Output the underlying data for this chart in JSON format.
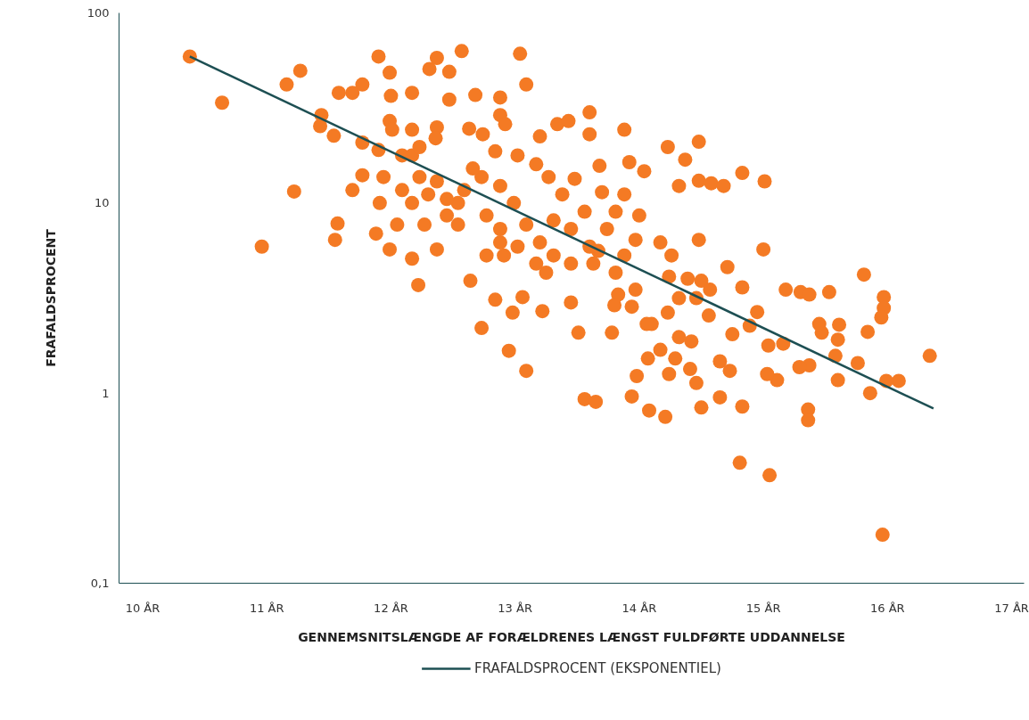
{
  "chart_data": {
    "type": "scatter",
    "xlabel": "GENNEMSNITSLÆNGDE AF FORÆLDRENES LÆNGST FULDFØRTE UDDANNELSE",
    "ylabel": "FRAFALDSPROCENT",
    "log": "y",
    "grid": false,
    "legend": "bottom",
    "line_style": "solid",
    "xlim": [
      9.81,
      17.1
    ],
    "xticks": [
      {
        "value": 10,
        "label": "10 ÅR"
      },
      {
        "value": 11,
        "label": "11 ÅR"
      },
      {
        "value": 12,
        "label": "12 ÅR"
      },
      {
        "value": 13,
        "label": "13 ÅR"
      },
      {
        "value": 14,
        "label": "14 ÅR"
      },
      {
        "value": 15,
        "label": "15 ÅR"
      },
      {
        "value": 16,
        "label": "16 ÅR"
      },
      {
        "value": 17,
        "label": "17 ÅR"
      }
    ],
    "ylim": [
      0.1,
      100
    ],
    "yticks": [
      {
        "value": 0.1,
        "label": "0,1"
      },
      1,
      10,
      100
    ],
    "series": [
      {
        "color": "#f47a24",
        "marker": "circle",
        "x": [
          10.38,
          10.64,
          10.96,
          11.16,
          11.27,
          11.22,
          11.44,
          11.43,
          11.54,
          11.58,
          11.57,
          11.55,
          11.69,
          11.69,
          11.77,
          11.77,
          11.77,
          11.9,
          11.9,
          11.88,
          11.99,
          11.99,
          11.99,
          12.0,
          12.17,
          12.17,
          12.22,
          12.17,
          12.17,
          12.17,
          12.31,
          12.37,
          12.37,
          12.47,
          12.47,
          12.57,
          12.37,
          12.37,
          12.54,
          12.54,
          12.68,
          12.63,
          12.64,
          12.73,
          12.74,
          12.77,
          12.84,
          12.88,
          12.88,
          12.92,
          13.04,
          13.09,
          12.95,
          12.98,
          13.09,
          13.06,
          13.22,
          13.25,
          13.2,
          13.34,
          13.43,
          13.6,
          13.6,
          13.56,
          13.65,
          13.51,
          13.78,
          13.68,
          13.88,
          13.92,
          14.04,
          14.0,
          13.94,
          14.08,
          13.97,
          13.98,
          14.21,
          14.23,
          14.37,
          14.32,
          14.48,
          14.48,
          14.58,
          14.68,
          14.83,
          15.01,
          15.0,
          14.48,
          14.5,
          14.83,
          14.81,
          15.05,
          14.71,
          14.83,
          15.18,
          15.3,
          15.37,
          15.53,
          15.36,
          15.36,
          15.81,
          15.97,
          15.97,
          15.95,
          15.84,
          16.34,
          16.09,
          15.99,
          15.86,
          15.96,
          15.76,
          15.6,
          15.6,
          15.61,
          15.47,
          15.45,
          15.58,
          15.37,
          15.29,
          15.11,
          15.03,
          15.16,
          15.04,
          14.95,
          14.89,
          14.75,
          14.65,
          14.73,
          14.65,
          14.46,
          14.41,
          14.29,
          14.24,
          14.17,
          14.07,
          14.1,
          14.23,
          14.32,
          14.46,
          14.56,
          14.39,
          14.24,
          14.17,
          14.26,
          14.5,
          14.57,
          13.83,
          13.8,
          13.97,
          13.94,
          12.73,
          12.88,
          12.99,
          13.09,
          13.2,
          13.31,
          13.45,
          13.56,
          13.74,
          13.67,
          13.38,
          13.27,
          13.17,
          13.02,
          12.84,
          12.66,
          12.59,
          12.45,
          12.3,
          12.23,
          12.09,
          11.94,
          11.91,
          12.05,
          12.27,
          12.45,
          12.88,
          13.02,
          13.17,
          13.45,
          13.63,
          13.81,
          13.88,
          13.81,
          13.88,
          13.7,
          13.48,
          12.91,
          12.77,
          12.09,
          12.01,
          12.23,
          12.36,
          12.88,
          13.31,
          13.6,
          14.06,
          14.42,
          14.32,
          13.45
        ],
        "values": [
          59,
          33.7,
          5.9,
          42,
          49.6,
          11.5,
          29,
          25.4,
          22.6,
          38,
          7.8,
          6.4,
          11.7,
          38,
          20.8,
          14,
          42,
          59,
          19,
          6.9,
          48.5,
          5.7,
          27,
          36.6,
          38,
          5.1,
          3.7,
          24.3,
          17.8,
          10,
          50.7,
          58,
          5.7,
          49,
          35,
          63,
          25,
          13,
          10,
          7.7,
          37,
          24.6,
          3.9,
          2.2,
          23,
          5.3,
          3.1,
          35.9,
          29,
          26,
          61,
          42,
          1.67,
          2.65,
          1.31,
          3.2,
          2.7,
          4.3,
          22.4,
          26,
          27,
          30,
          23,
          0.93,
          0.9,
          2.08,
          2.08,
          15.7,
          24.3,
          16.4,
          14.7,
          8.6,
          0.96,
          0.81,
          6.4,
          1.23,
          0.75,
          19.7,
          16.9,
          12.3,
          21,
          13.1,
          12.7,
          12.3,
          14.4,
          13,
          5.7,
          6.4,
          0.84,
          0.85,
          0.43,
          0.37,
          4.6,
          3.6,
          3.5,
          3.4,
          3.3,
          3.4,
          0.82,
          0.72,
          4.2,
          3.2,
          2.8,
          2.5,
          2.1,
          1.57,
          1.16,
          1.16,
          1.0,
          0.18,
          1.44,
          1.17,
          1.91,
          2.29,
          2.08,
          2.31,
          1.57,
          1.4,
          1.37,
          1.17,
          1.26,
          1.82,
          1.78,
          2.67,
          2.26,
          2.04,
          1.47,
          1.31,
          0.95,
          1.13,
          1.34,
          1.52,
          1.26,
          1.69,
          1.52,
          2.31,
          2.65,
          3.16,
          3.16,
          2.56,
          4.0,
          4.1,
          6.2,
          5.3,
          3.9,
          3.5,
          3.3,
          2.9,
          3.5,
          2.85,
          13.7,
          12.3,
          10,
          7.7,
          6.2,
          5.3,
          7.3,
          9.0,
          7.3,
          5.6,
          11.1,
          13.7,
          16,
          17.8,
          18.7,
          15.2,
          11.7,
          10.5,
          11.1,
          13.7,
          11.7,
          13.7,
          10,
          7.7,
          7.7,
          8.6,
          7.3,
          5.9,
          4.8,
          4.8,
          4.8,
          4.3,
          5.3,
          9.0,
          11.1,
          11.4,
          13.4,
          5.3,
          8.6,
          17.8,
          24.3,
          19.7,
          21.9,
          6.2,
          8.1,
          5.9,
          2.31,
          1.87,
          1.97,
          3.0
        ]
      },
      {
        "type": "line",
        "name": "FRAFALDSPROCENT (EKSPONENTIEL)",
        "color": "#1d4f53",
        "x": [
          10.38,
          16.37
        ],
        "values": [
          59,
          0.83
        ]
      }
    ]
  }
}
